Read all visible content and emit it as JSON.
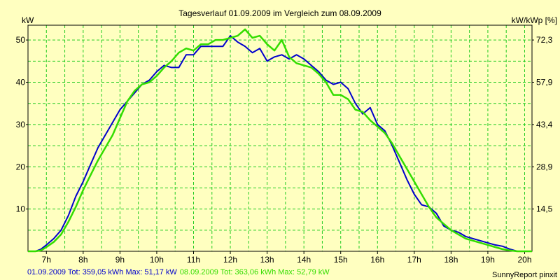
{
  "chart_data": {
    "type": "line",
    "title": "Tagesverlauf 01.09.2009 im Vergleich zum 08.09.2009",
    "ylabel_left": "kW",
    "ylabel_right": "kW/kWp [%]",
    "x_ticks": [
      "7h",
      "8h",
      "9h",
      "10h",
      "11h",
      "12h",
      "13h",
      "14h",
      "15h",
      "16h",
      "17h",
      "18h",
      "19h",
      "20h"
    ],
    "y_ticks_left": [
      "10",
      "20",
      "30",
      "40",
      "50"
    ],
    "y_ticks_right": [
      "14,5",
      "28,9",
      "43,4",
      "57,9",
      "72,3"
    ],
    "xlim": [
      6.5,
      20.2
    ],
    "ylim": [
      0,
      53.5
    ],
    "grid": true,
    "series": [
      {
        "name": "01.09.2009",
        "color": "#0000cc",
        "x": [
          6.5,
          6.7,
          6.85,
          7.0,
          7.2,
          7.4,
          7.6,
          7.8,
          8.0,
          8.2,
          8.4,
          8.6,
          8.8,
          9.0,
          9.2,
          9.4,
          9.6,
          9.8,
          10.0,
          10.2,
          10.4,
          10.6,
          10.8,
          11.0,
          11.2,
          11.4,
          11.6,
          11.8,
          12.0,
          12.2,
          12.4,
          12.6,
          12.8,
          13.0,
          13.2,
          13.4,
          13.6,
          13.8,
          14.0,
          14.2,
          14.4,
          14.6,
          14.8,
          15.0,
          15.2,
          15.4,
          15.6,
          15.8,
          16.0,
          16.2,
          16.4,
          16.6,
          16.8,
          17.0,
          17.2,
          17.4,
          17.6,
          17.8,
          18.0,
          18.2,
          18.4,
          18.6,
          18.8,
          19.0,
          19.2,
          19.4,
          19.6,
          19.8,
          20.2
        ],
        "y": [
          0,
          0,
          0.5,
          1.5,
          3,
          5,
          8.5,
          13,
          16.5,
          20.5,
          24.5,
          27.5,
          30.5,
          33.5,
          35.5,
          37.5,
          39.5,
          40.5,
          42.5,
          44,
          43.5,
          43.5,
          46.5,
          46.5,
          48.5,
          48.5,
          48.5,
          48.5,
          51,
          49.5,
          48.5,
          47,
          48,
          45,
          46,
          46.5,
          45.5,
          46.5,
          45.5,
          44,
          42.5,
          40.5,
          39.5,
          40,
          38.5,
          35,
          32.5,
          34,
          30,
          28.5,
          25,
          21,
          17,
          13.5,
          11,
          10.5,
          9,
          6,
          5,
          4.5,
          3.5,
          3,
          2.5,
          2,
          1.5,
          1.2,
          0.5,
          0,
          0
        ]
      },
      {
        "name": "08.09.2009",
        "color": "#33dd00",
        "x": [
          6.5,
          6.7,
          6.85,
          7.0,
          7.2,
          7.4,
          7.6,
          7.8,
          8.0,
          8.2,
          8.4,
          8.6,
          8.8,
          9.0,
          9.2,
          9.4,
          9.6,
          9.8,
          10.0,
          10.2,
          10.4,
          10.6,
          10.8,
          11.0,
          11.2,
          11.4,
          11.6,
          11.8,
          12.0,
          12.2,
          12.4,
          12.6,
          12.8,
          13.0,
          13.2,
          13.4,
          13.6,
          13.8,
          14.0,
          14.2,
          14.4,
          14.6,
          14.8,
          15.0,
          15.2,
          15.4,
          15.6,
          15.8,
          16.0,
          16.2,
          16.4,
          16.6,
          16.8,
          17.0,
          17.2,
          17.4,
          17.6,
          17.8,
          18.0,
          18.2,
          18.4,
          18.6,
          18.8,
          19.0,
          19.2,
          19.4,
          19.6,
          19.8,
          20.2
        ],
        "y": [
          0,
          0,
          0.2,
          1,
          2.2,
          4,
          7,
          10.5,
          14.5,
          18,
          21.5,
          24.5,
          27.5,
          31.5,
          35.5,
          38,
          39.5,
          40,
          41.5,
          43.5,
          45,
          47,
          48,
          47.5,
          49,
          49,
          50,
          50,
          50.5,
          51,
          52.5,
          50.5,
          51,
          49,
          47.5,
          50,
          46,
          44.5,
          44,
          43.5,
          42,
          40,
          37,
          37,
          36,
          33.5,
          33,
          31,
          29.5,
          28,
          25.5,
          22.5,
          19.5,
          16.5,
          13.5,
          10.5,
          8,
          6.5,
          5,
          4,
          3,
          2.5,
          2,
          1.5,
          1,
          0.5,
          0.2,
          0,
          0
        ]
      }
    ]
  },
  "footer": {
    "series1_label": "01.09.2009 Tot: 359,05 kWh Max: 51,17 kW",
    "series2_label": "08.09.2009 Tot: 363,06 kWh Max: 52,79 kW",
    "brand": "SunnyReport pinxit"
  }
}
